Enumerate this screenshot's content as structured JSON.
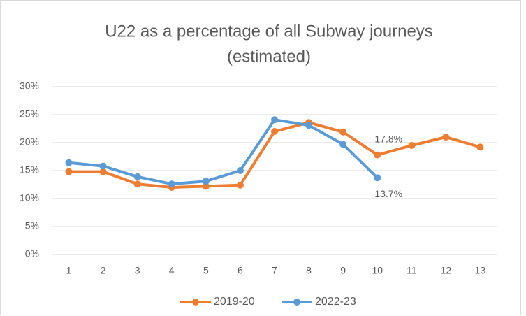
{
  "chart_data": {
    "type": "line",
    "title": [
      "U22 as a percentage of all Subway journeys",
      "(estimated)"
    ],
    "categories": [
      "1",
      "2",
      "3",
      "4",
      "5",
      "6",
      "7",
      "8",
      "9",
      "10",
      "11",
      "12",
      "13"
    ],
    "series": [
      {
        "name": "2019-20",
        "color": "#ed7d31",
        "values": [
          14.8,
          14.8,
          12.6,
          12.0,
          12.2,
          12.4,
          22.0,
          23.6,
          21.9,
          17.8,
          19.5,
          21.0,
          19.2
        ],
        "value_labels": [
          null,
          null,
          null,
          null,
          null,
          null,
          null,
          null,
          null,
          "17.8%",
          null,
          null,
          null
        ]
      },
      {
        "name": "2022-23",
        "color": "#5b9bd5",
        "values": [
          16.4,
          15.8,
          13.9,
          12.6,
          13.1,
          15.0,
          24.1,
          23.1,
          19.7,
          13.7,
          null,
          null,
          null
        ],
        "value_labels": [
          null,
          null,
          null,
          null,
          null,
          null,
          null,
          null,
          null,
          "13.7%",
          null,
          null,
          null
        ]
      }
    ],
    "ylim": [
      0,
      30
    ],
    "yticks": [
      {
        "value": 0,
        "label": "0%"
      },
      {
        "value": 5,
        "label": "5%"
      },
      {
        "value": 10,
        "label": "10%"
      },
      {
        "value": 15,
        "label": "15%"
      },
      {
        "value": 20,
        "label": "20%"
      },
      {
        "value": 25,
        "label": "25%"
      },
      {
        "value": 30,
        "label": "30%"
      }
    ],
    "grid": true,
    "legend": "bottom"
  }
}
